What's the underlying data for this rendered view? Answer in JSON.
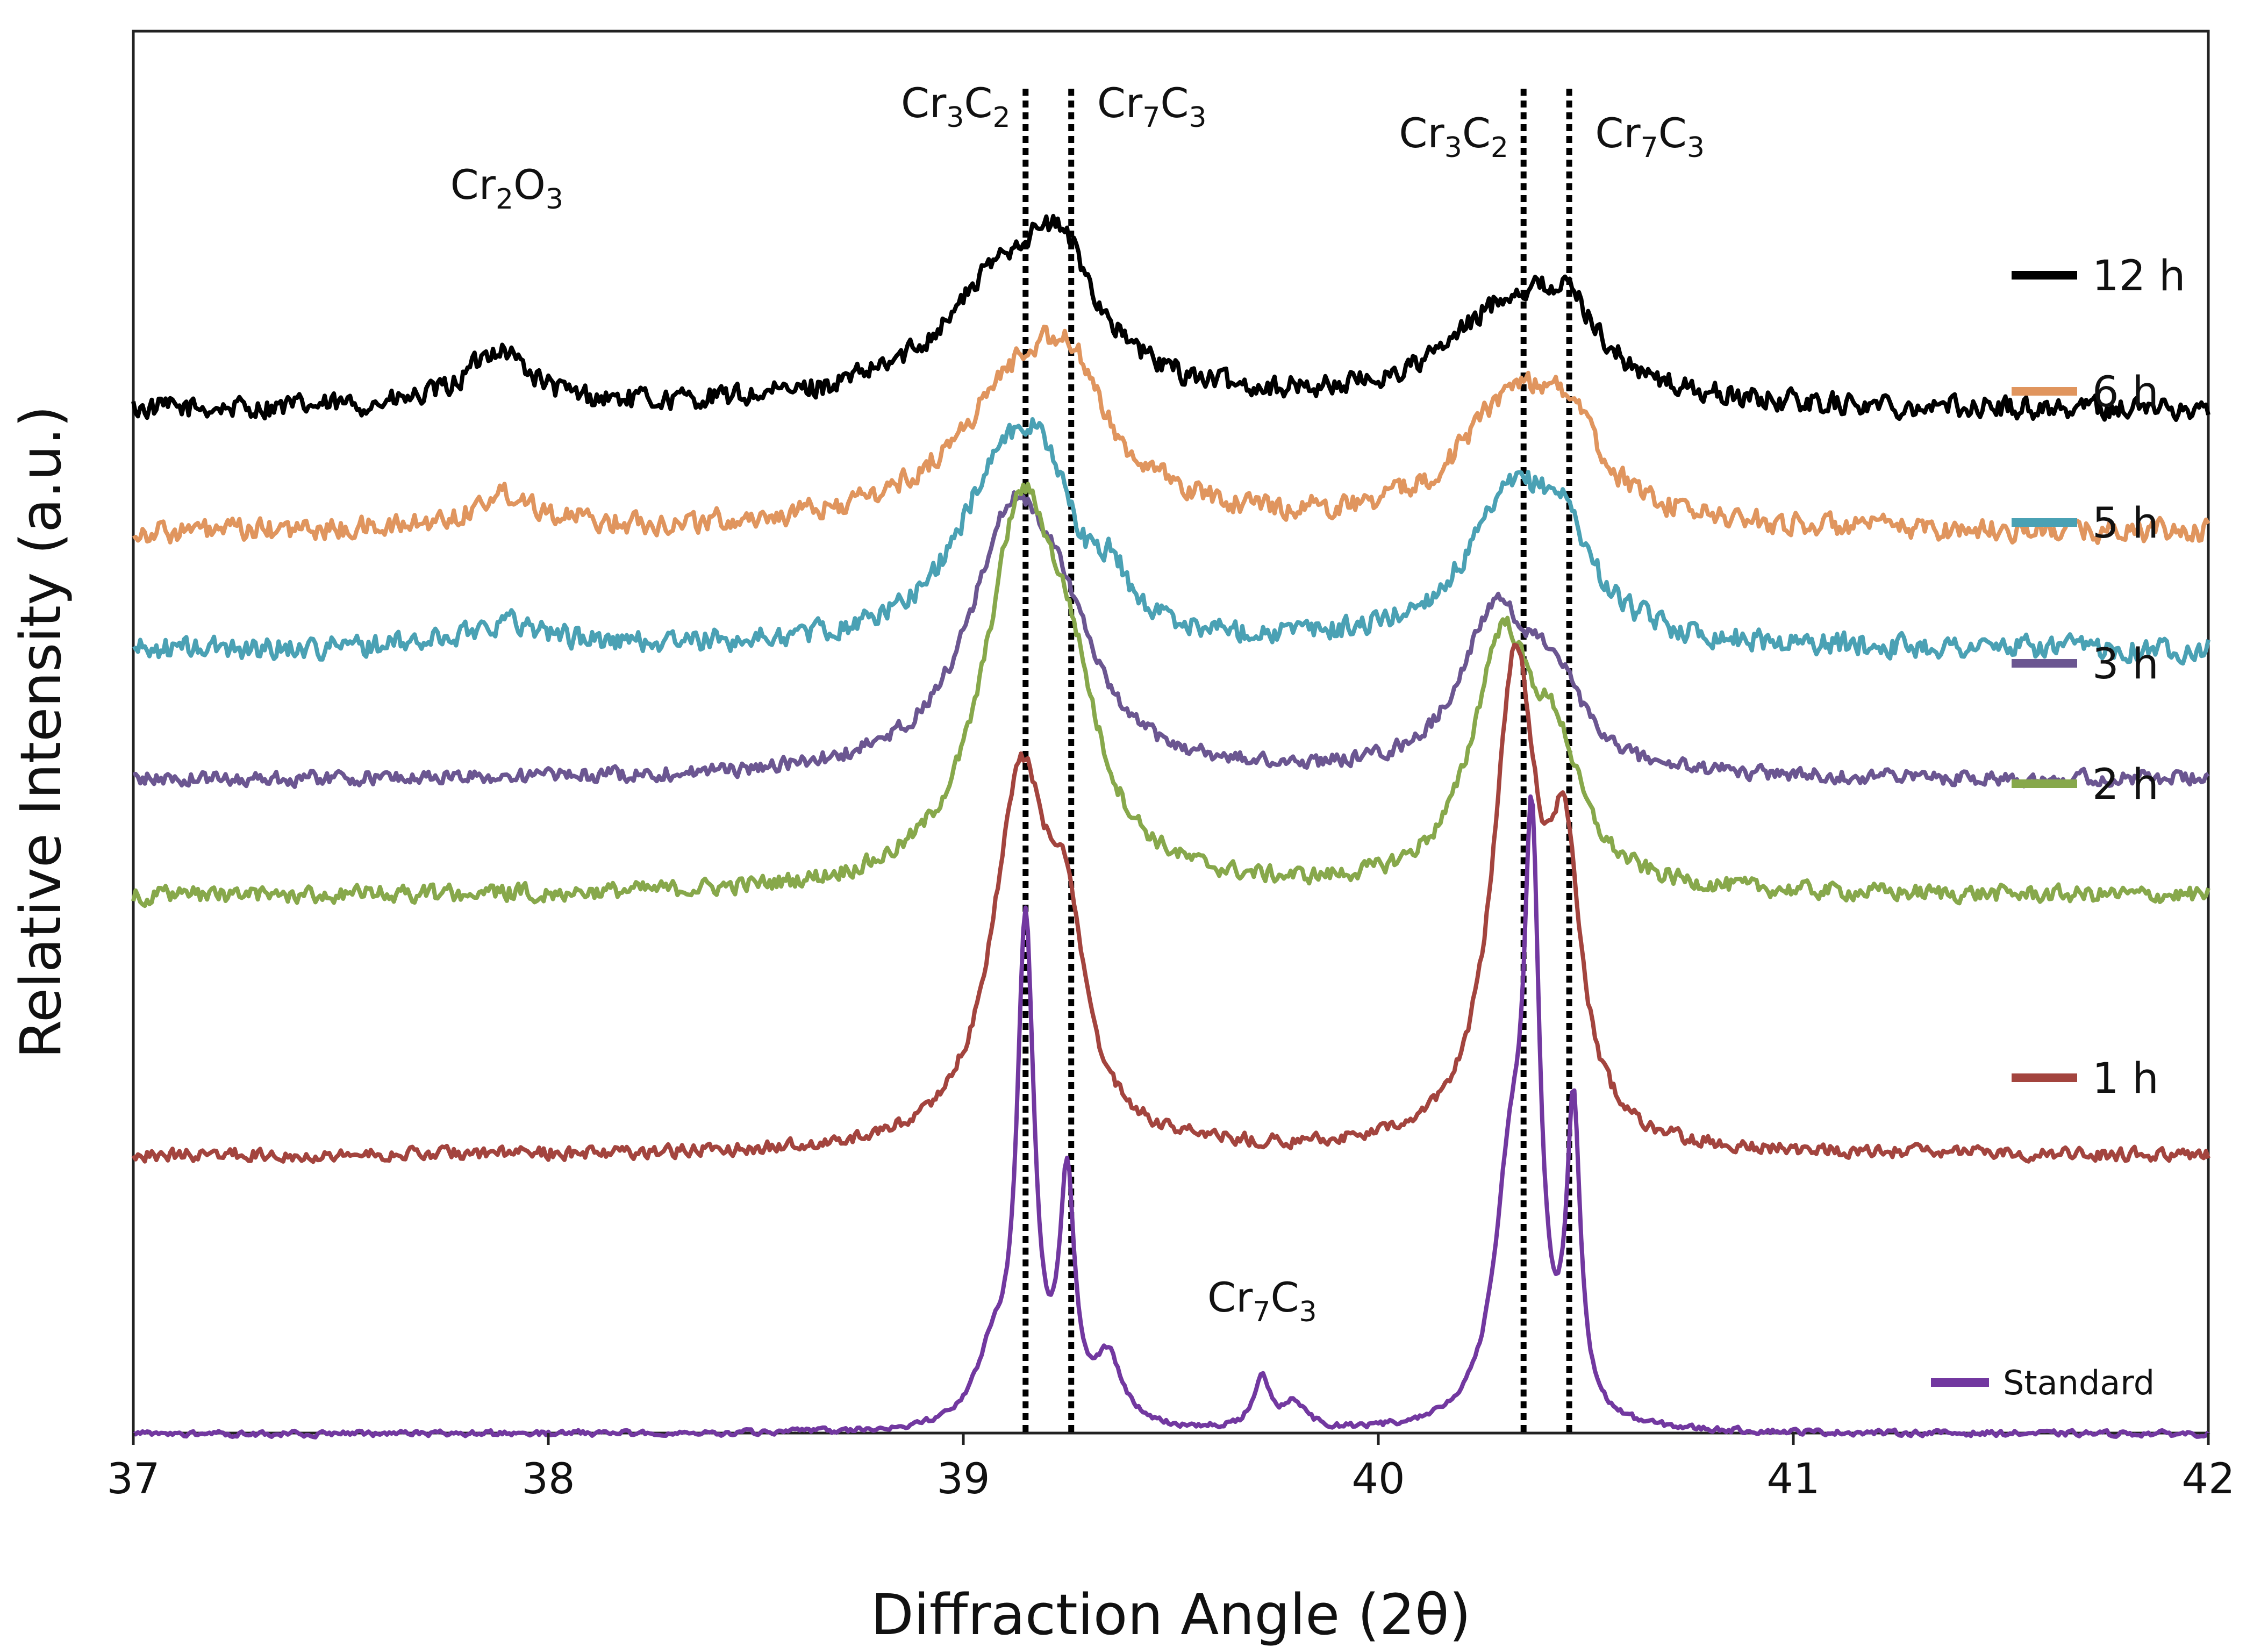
{
  "chart_data": {
    "type": "line",
    "title": "",
    "xlabel": "Diffraction Angle (2θ)",
    "ylabel": "Relative Intensity (a.u.)",
    "xlim": [
      37,
      42
    ],
    "x_ticks": [
      "37",
      "38",
      "39",
      "40",
      "41",
      "42"
    ],
    "y_ticks": [],
    "grid": false,
    "legend_position": "right, stacked next to each curve",
    "reference_lines": [
      {
        "label_main": "Cr",
        "sub1": "3",
        "mid": "C",
        "sub2": "2",
        "x": 39.15
      },
      {
        "label_main": "Cr",
        "sub1": "7",
        "mid": "C",
        "sub2": "3",
        "x": 39.26
      },
      {
        "label_main": "Cr",
        "sub1": "3",
        "mid": "C",
        "sub2": "2",
        "x": 40.35
      },
      {
        "label_main": "Cr",
        "sub1": "7",
        "mid": "C",
        "sub2": "3",
        "x": 40.46
      }
    ],
    "annotations": [
      {
        "label_main": "Cr",
        "sub1": "2",
        "mid": "O",
        "sub2": "3",
        "x": 37.9,
        "series": "12 h"
      },
      {
        "label_main": "Cr",
        "sub1": "7",
        "mid": "C",
        "sub2": "3",
        "x": 39.72,
        "series": "Standard"
      }
    ],
    "series": [
      {
        "name": "12 h",
        "color": "#000000",
        "baseline": 0.79,
        "noise": 0.012,
        "peaks": [
          [
            37.88,
            0.045,
            0.09
          ],
          [
            39.12,
            0.105,
            0.2
          ],
          [
            39.24,
            0.06,
            0.09
          ],
          [
            40.32,
            0.075,
            0.18
          ],
          [
            40.46,
            0.045,
            0.09
          ]
        ]
      },
      {
        "name": "6 h",
        "color": "#e0955e",
        "baseline": 0.695,
        "noise": 0.012,
        "peaks": [
          [
            37.9,
            0.028,
            0.1
          ],
          [
            39.16,
            0.125,
            0.2
          ],
          [
            39.26,
            0.045,
            0.08
          ],
          [
            40.33,
            0.1,
            0.16
          ],
          [
            40.46,
            0.045,
            0.08
          ]
        ]
      },
      {
        "name": "5 h",
        "color": "#4aa1b4",
        "baseline": 0.605,
        "noise": 0.012,
        "peaks": [
          [
            37.9,
            0.02,
            0.12
          ],
          [
            39.1,
            0.135,
            0.14
          ],
          [
            39.2,
            0.07,
            0.08
          ],
          [
            39.36,
            0.03,
            0.04
          ],
          [
            40.33,
            0.115,
            0.14
          ],
          [
            40.45,
            0.05,
            0.07
          ]
        ]
      },
      {
        "name": "3 h",
        "color": "#6b5691",
        "baseline": 0.505,
        "noise": 0.008,
        "peaks": [
          [
            39.12,
            0.195,
            0.13
          ],
          [
            39.24,
            0.06,
            0.09
          ],
          [
            40.28,
            0.12,
            0.1
          ],
          [
            40.42,
            0.06,
            0.08
          ]
        ]
      },
      {
        "name": "2 h",
        "color": "#87a84b",
        "baseline": 0.415,
        "noise": 0.009,
        "peaks": [
          [
            39.14,
            0.285,
            0.11
          ],
          [
            39.26,
            0.09,
            0.08
          ],
          [
            40.3,
            0.19,
            0.09
          ],
          [
            40.43,
            0.08,
            0.07
          ]
        ]
      },
      {
        "name": "1 h",
        "color": "#a3443e",
        "baseline": 0.215,
        "noise": 0.007,
        "peaks": [
          [
            39.14,
            0.285,
            0.085
          ],
          [
            39.25,
            0.12,
            0.05
          ],
          [
            40.33,
            0.37,
            0.065
          ],
          [
            40.45,
            0.19,
            0.045
          ]
        ]
      },
      {
        "name": "Standard",
        "color": "#7238a0",
        "baseline": 0.0,
        "noise": 0.003,
        "peaks": [
          [
            39.15,
            0.38,
            0.025
          ],
          [
            39.25,
            0.18,
            0.022
          ],
          [
            39.07,
            0.05,
            0.05
          ],
          [
            39.35,
            0.05,
            0.04
          ],
          [
            39.72,
            0.04,
            0.025
          ],
          [
            39.8,
            0.02,
            0.03
          ],
          [
            40.32,
            0.19,
            0.05
          ],
          [
            40.37,
            0.39,
            0.022
          ],
          [
            40.47,
            0.23,
            0.02
          ]
        ]
      }
    ]
  }
}
